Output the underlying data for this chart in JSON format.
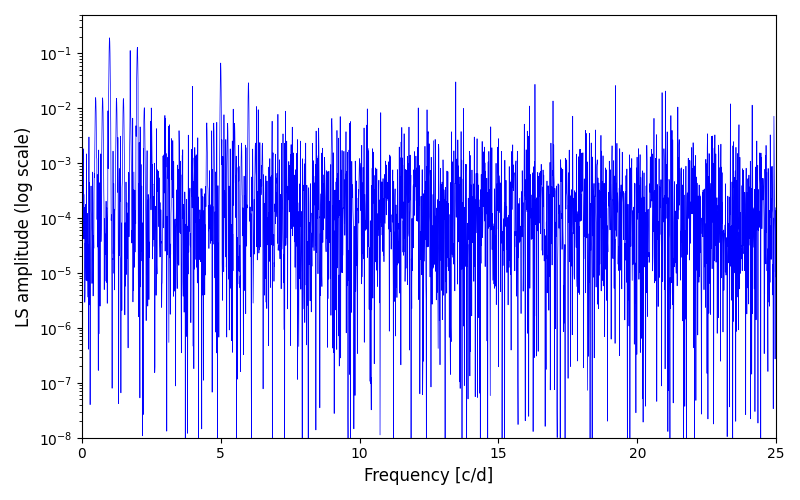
{
  "title": "",
  "xlabel": "Frequency [c/d]",
  "ylabel": "LS amplitude (log scale)",
  "xlim": [
    0,
    25
  ],
  "ylim": [
    1e-08,
    0.5
  ],
  "line_color": "#0000FF",
  "line_width": 0.5,
  "figsize": [
    8.0,
    5.0
  ],
  "dpi": 100,
  "yscale": "log",
  "seed": 42,
  "freq_max": 25.0,
  "n_points": 3000
}
